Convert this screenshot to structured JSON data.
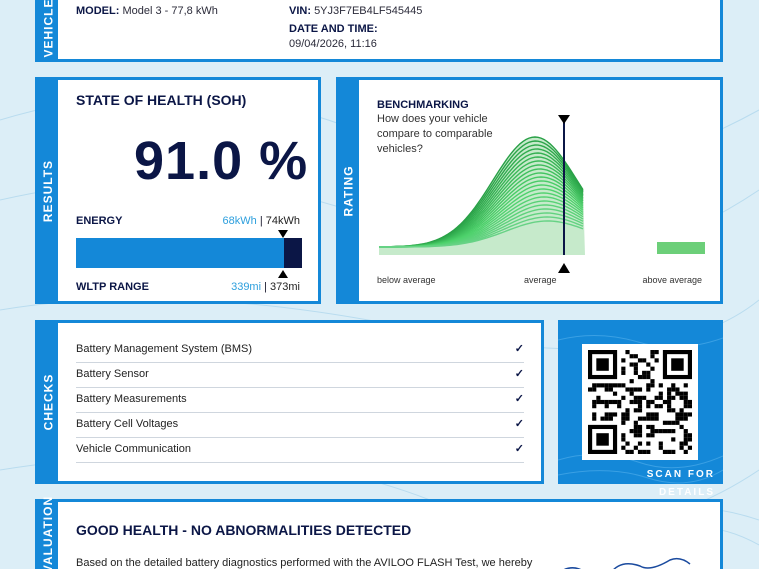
{
  "vehicle": {
    "side_label": "VEHICLE",
    "model_label": "MODEL:",
    "model_value": "Model 3 - 77,8 kWh",
    "vin_label": "VIN:",
    "vin_value": "5YJ3F7EB4LF545445",
    "date_label": "DATE AND TIME:",
    "date_value": "09/04/2026, 11:16"
  },
  "results": {
    "side_label": "RESULTS",
    "title": "STATE OF HEALTH (SOH)",
    "soh_value": "91.0 %",
    "energy_label": "ENERGY",
    "energy_current": "68kWh",
    "energy_sep": " | ",
    "energy_total": "74kWh",
    "energy_fraction": 0.919,
    "range_label": "WLTP RANGE",
    "range_current": "339mi",
    "range_sep": " | ",
    "range_total": "373mi"
  },
  "rating": {
    "side_label": "RATING",
    "title": "BENCHMARKING",
    "question": "How does your vehicle compare to comparable vehicles?",
    "below_label": "below average",
    "average_label": "average",
    "above_label": "above average"
  },
  "checks": {
    "side_label": "CHECKS",
    "items": [
      {
        "label": "Battery Management System (BMS)",
        "status": "✓"
      },
      {
        "label": "Battery Sensor",
        "status": "✓"
      },
      {
        "label": "Battery Measurements",
        "status": "✓"
      },
      {
        "label": "Battery Cell Voltages",
        "status": "✓"
      },
      {
        "label": "Vehicle Communication",
        "status": "✓"
      }
    ]
  },
  "qr": {
    "caption": "SCAN FOR DETAILS"
  },
  "evaluation": {
    "side_label": "EVALUATION",
    "title": "GOOD HEALTH - NO ABNORMALITIES DETECTED",
    "text": "Based on the detailed battery diagnostics performed with the AVILOO FLASH Test, we hereby"
  },
  "colors": {
    "accent": "#1488d8",
    "navy": "#0b1646",
    "green": "#3fb44f"
  }
}
